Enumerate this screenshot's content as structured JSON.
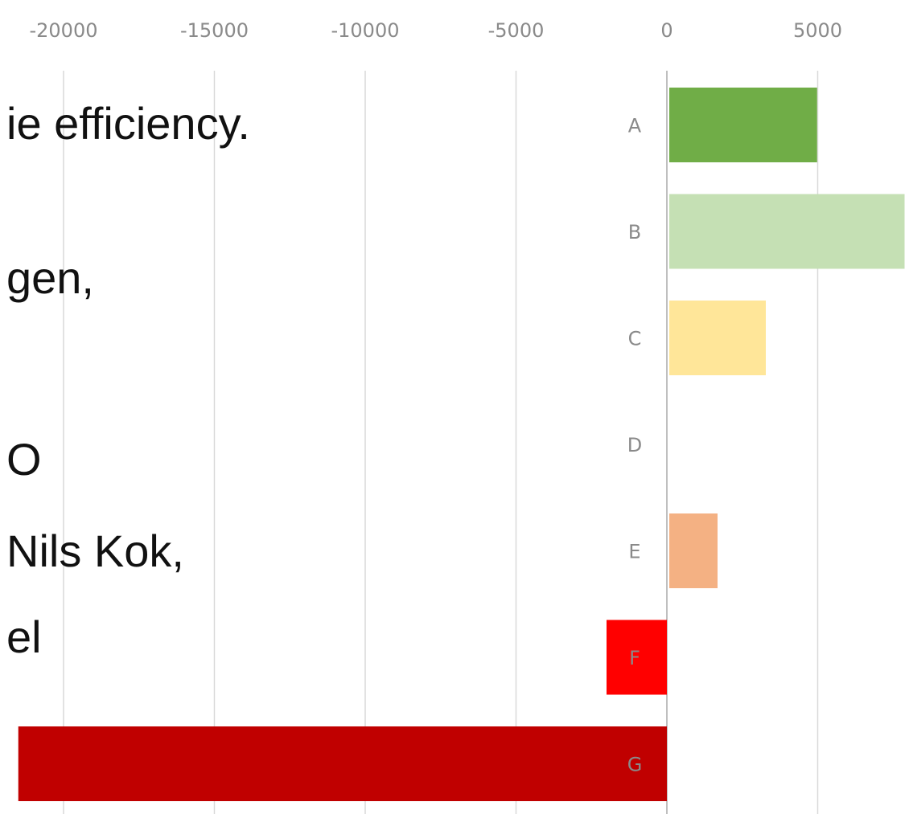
{
  "slide_text": {
    "line1": "ie efficiency.",
    "line2": "gen,",
    "line3": "O",
    "line4": "Nils Kok,",
    "line5": "el"
  },
  "chart_data": {
    "type": "bar",
    "orientation": "horizontal",
    "categories": [
      "A",
      "B",
      "C",
      "D",
      "E",
      "F",
      "G"
    ],
    "values": [
      4900,
      7800,
      3200,
      0,
      1600,
      -2000,
      -21500
    ],
    "colors": [
      "#70ad47",
      "#c5e0b4",
      "#ffe699",
      "#ffffff",
      "#f4b183",
      "#ff0000",
      "#c00000"
    ],
    "xlim": [
      -22000,
      8000
    ],
    "xticks": [
      -20000,
      -15000,
      -10000,
      -5000,
      0,
      5000
    ],
    "xticks_position": "top",
    "grid": true,
    "title": "",
    "xlabel": "",
    "ylabel": ""
  }
}
